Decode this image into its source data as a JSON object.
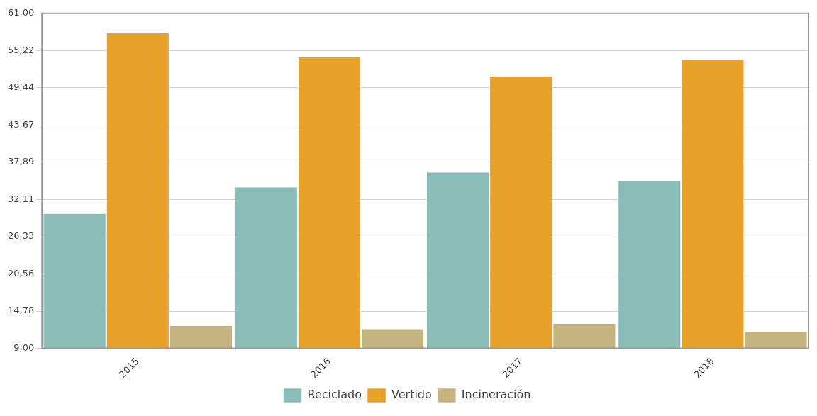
{
  "chart_data": {
    "type": "bar",
    "categories": [
      "2015",
      "2016",
      "2017",
      "2018"
    ],
    "series": [
      {
        "name": "Reciclado",
        "color": "#8bbdb8",
        "values": [
          29.9,
          34.0,
          36.3,
          34.9
        ]
      },
      {
        "name": "Vertido",
        "color": "#e9a229",
        "values": [
          57.9,
          54.2,
          51.2,
          53.8
        ]
      },
      {
        "name": "Incineración",
        "color": "#c4b37e",
        "values": [
          12.5,
          12.0,
          12.8,
          11.6
        ]
      }
    ],
    "ylim": [
      9,
      61
    ],
    "yticks": [
      {
        "value": 9,
        "label": "9,00"
      },
      {
        "value": 14.78,
        "label": "14,78"
      },
      {
        "value": 20.56,
        "label": "20,56"
      },
      {
        "value": 26.33,
        "label": "26,33"
      },
      {
        "value": 32.11,
        "label": "32,11"
      },
      {
        "value": 37.89,
        "label": "37,89"
      },
      {
        "value": 43.67,
        "label": "43,67"
      },
      {
        "value": 49.44,
        "label": "49,44"
      },
      {
        "value": 55.22,
        "label": "55,22"
      },
      {
        "value": 61,
        "label": "61,00"
      }
    ],
    "grid": "y",
    "legend": "bottom"
  }
}
